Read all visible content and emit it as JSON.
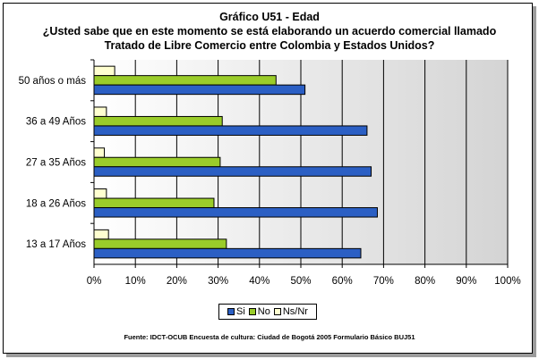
{
  "title_lines": [
    "Gráfico U51 - Edad",
    "¿Usted sabe que en este momento se está elaborando un acuerdo comercial llamado",
    "Tratado de Libre Comercio entre Colombia y Estados Unidos?"
  ],
  "source": "Fuente: IDCT-OCUB Encuesta de cultura: Ciudad de Bogotá 2005 Formulario Básico BUJ51",
  "colors": {
    "si": "#2b5fc4",
    "no": "#9acc2a",
    "nsnr": "#ffffd0",
    "plot_bg_top": "#ffffff",
    "plot_bg_bottom": "#d4d4d4"
  },
  "chart_data": {
    "type": "bar",
    "orientation": "horizontal",
    "categories": [
      "50 años o más",
      "36 a 49 Años",
      "27 a 35 Años",
      "18 a 26 Años",
      "13 a 17 Años"
    ],
    "series": [
      {
        "name": "Si",
        "values": [
          51,
          66,
          67,
          68.5,
          64.5
        ]
      },
      {
        "name": "No",
        "values": [
          44,
          31,
          30.5,
          29,
          32
        ]
      },
      {
        "name": "Ns/Nr",
        "values": [
          5,
          3,
          2.5,
          3,
          3.5
        ]
      }
    ],
    "xlim": [
      0,
      100
    ],
    "x_ticks": [
      "0%",
      "10%",
      "20%",
      "30%",
      "40%",
      "50%",
      "60%",
      "70%",
      "80%",
      "90%",
      "100%"
    ],
    "grid": true,
    "legend_position": "bottom"
  }
}
